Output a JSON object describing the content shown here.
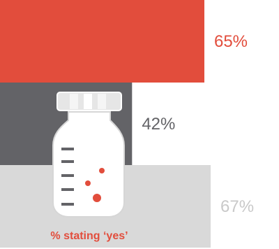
{
  "chart_data": {
    "type": "bar",
    "orientation": "horizontal",
    "categories": [
      "",
      "",
      ""
    ],
    "values": [
      65,
      42,
      67
    ],
    "value_labels": [
      "65%",
      "42%",
      "67%"
    ],
    "bar_colors": [
      "#e24d3c",
      "#636367",
      "#d9d9d9"
    ],
    "label_colors": [
      "#e24d3c",
      "#636367",
      "#c9c9c9"
    ],
    "caption": "% stating ‘yes’",
    "caption_color": "#e24d3c",
    "xlim": [
      0,
      67
    ],
    "icon": "medicine-bottle-icon"
  }
}
